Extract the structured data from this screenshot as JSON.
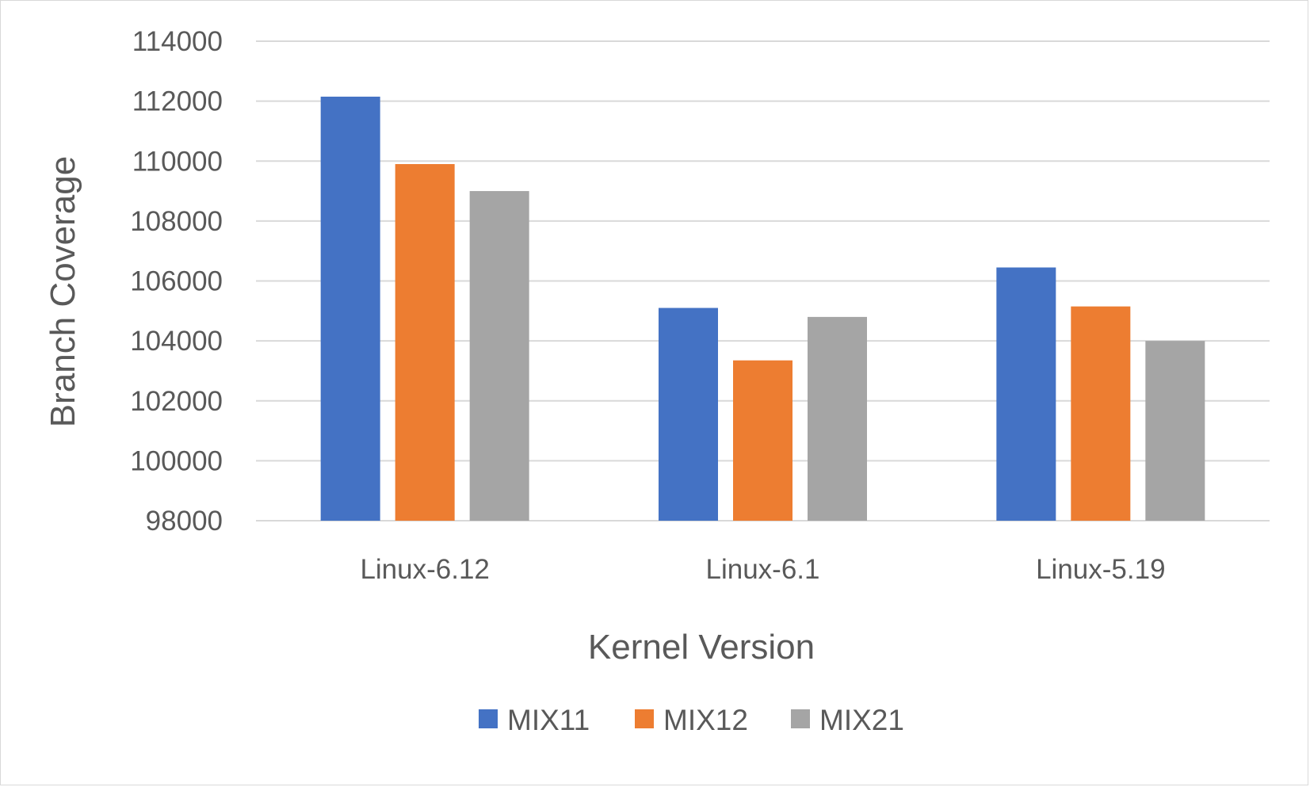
{
  "chart_data": {
    "type": "bar",
    "title": "",
    "xlabel": "Kernel Version",
    "ylabel": "Branch Coverage",
    "categories": [
      "Linux-6.12",
      "Linux-6.1",
      "Linux-5.19"
    ],
    "series": [
      {
        "name": "MIX11",
        "color": "#4472c4",
        "values": [
          112150,
          105100,
          106450
        ]
      },
      {
        "name": "MIX12",
        "color": "#ed7d31",
        "values": [
          109900,
          103350,
          105150
        ]
      },
      {
        "name": "MIX21",
        "color": "#a5a5a5",
        "values": [
          109000,
          104800,
          104000
        ]
      }
    ],
    "ylim": [
      98000,
      114000
    ],
    "yticks": [
      98000,
      100000,
      102000,
      104000,
      106000,
      108000,
      110000,
      112000,
      114000
    ],
    "ytick_labels": [
      "98000",
      "100000",
      "102000",
      "104000",
      "106000",
      "108000",
      "110000",
      "112000",
      "114000"
    ],
    "grid": true,
    "legend_position": "bottom"
  }
}
